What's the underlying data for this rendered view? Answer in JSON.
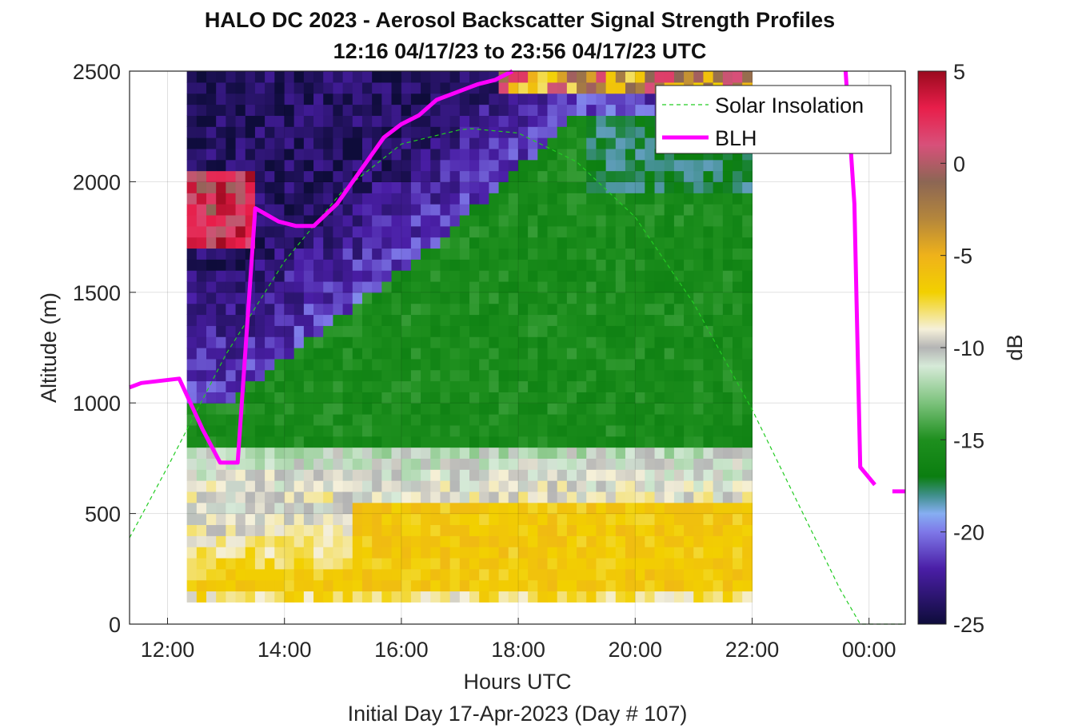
{
  "chart_data": {
    "type": "heatmap",
    "title": "HALO DC 2023 - Aerosol Backscatter Signal Strength Profiles",
    "subtitle": "12:16 04/17/23 to 23:56 04/17/23  UTC",
    "xlabel": "Hours UTC",
    "xlabel2": "Initial Day 17-Apr-2023 (Day # 107)",
    "ylabel": "Altitude (m)",
    "colorbar_label": "dB",
    "xlim": [
      11.35,
      24.62
    ],
    "ylim": [
      0,
      2500
    ],
    "x_ticks": [
      12,
      14,
      16,
      18,
      20,
      22,
      24
    ],
    "x_tick_labels": [
      "12:00",
      "14:00",
      "16:00",
      "18:00",
      "20:00",
      "22:00",
      "00:00"
    ],
    "y_ticks": [
      0,
      500,
      1000,
      1500,
      2000,
      2500
    ],
    "y_tick_labels": [
      "0",
      "500",
      "1000",
      "1500",
      "2000",
      "2500"
    ],
    "colorbar_range": [
      -25,
      5
    ],
    "colorbar_ticks": [
      5,
      0,
      -5,
      -10,
      -15,
      -20,
      -25
    ],
    "colorbar_tick_labels": [
      "5",
      "0",
      "-5",
      "-10",
      "-15",
      "-20",
      "-25"
    ],
    "colormap_stops": [
      {
        "value": -25,
        "color": "#0e0c3a"
      },
      {
        "value": -22,
        "color": "#4a1ea6"
      },
      {
        "value": -20,
        "color": "#7e78e8"
      },
      {
        "value": -19,
        "color": "#86aef2"
      },
      {
        "value": -18,
        "color": "#3f8f8a"
      },
      {
        "value": -17,
        "color": "#0b7e10"
      },
      {
        "value": -15,
        "color": "#1e8f1e"
      },
      {
        "value": -13,
        "color": "#7cc27c"
      },
      {
        "value": -11,
        "color": "#d6ead8"
      },
      {
        "value": -10,
        "color": "#b4b4b4"
      },
      {
        "value": -9,
        "color": "#f5f0da"
      },
      {
        "value": -7,
        "color": "#f2d000"
      },
      {
        "value": -5,
        "color": "#efb21a"
      },
      {
        "value": -3,
        "color": "#b4863c"
      },
      {
        "value": -1,
        "color": "#8c6654"
      },
      {
        "value": 1,
        "color": "#d8507a"
      },
      {
        "value": 3,
        "color": "#e81e4a"
      },
      {
        "value": 5,
        "color": "#9a0a1e"
      }
    ],
    "heatmap_grid": {
      "x_start_hours": 12.33,
      "x_step_hours": 0.1667,
      "x_count": 58,
      "y_start_m": 100,
      "y_step_m": 50,
      "y_count": 48
    },
    "series": [
      {
        "name": "Solar Insolation",
        "style": "dashed",
        "color": "#22cc22",
        "x": [
          11.35,
          12.0,
          13.0,
          14.0,
          15.0,
          16.0,
          17.0,
          17.2,
          18.0,
          19.0,
          20.0,
          21.0,
          22.0,
          23.0,
          23.5,
          23.85,
          24.62
        ],
        "y": [
          390,
          710,
          1220,
          1640,
          1960,
          2170,
          2235,
          2240,
          2220,
          2090,
          1840,
          1450,
          970,
          430,
          160,
          0,
          0
        ]
      },
      {
        "name": "BLH",
        "style": "solid",
        "color": "#ff00ff",
        "segments": [
          {
            "x": [
              11.35,
              11.55,
              12.2,
              12.6,
              12.9,
              13.2,
              13.5,
              13.9,
              14.2,
              14.5,
              14.9,
              15.3,
              15.7,
              16.0,
              16.3,
              16.6,
              17.0,
              17.3,
              17.6,
              17.9
            ],
            "y": [
              1070,
              1090,
              1110,
              880,
              730,
              730,
              1880,
              1820,
              1800,
              1800,
              1900,
              2050,
              2200,
              2260,
              2300,
              2370,
              2410,
              2440,
              2460,
              2500
            ]
          },
          {
            "x": [
              23.6,
              23.75,
              23.85,
              24.1
            ],
            "y": [
              2500,
              1900,
              710,
              630
            ]
          },
          {
            "x": [
              24.4,
              24.62
            ],
            "y": [
              600,
              600
            ]
          }
        ]
      }
    ],
    "legend": {
      "placement": "top-right",
      "entries": [
        "Solar Insolation",
        "BLH"
      ]
    },
    "grid": true
  }
}
